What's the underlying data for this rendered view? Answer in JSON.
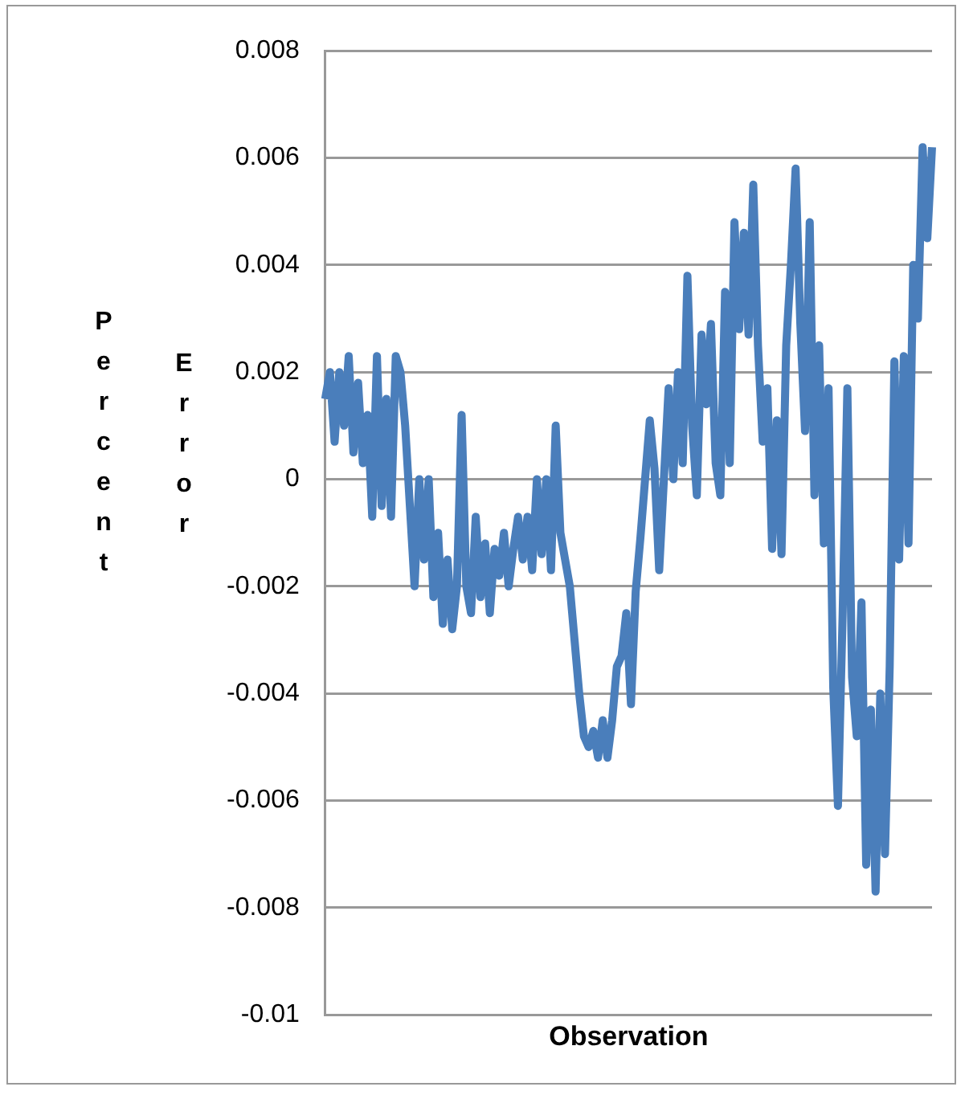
{
  "chart_data": {
    "type": "line",
    "xlabel": "Observation",
    "ylabel": "Percent Error",
    "categories": [
      null,
      null,
      null,
      null,
      null,
      null,
      null,
      null,
      null,
      null,
      null,
      null,
      null,
      null,
      null,
      null,
      null,
      null,
      null,
      null,
      null,
      null,
      null,
      null,
      null,
      null,
      null,
      null,
      null,
      null,
      null,
      null,
      null,
      null,
      null,
      null,
      null,
      null,
      null,
      null,
      null,
      null,
      null,
      null,
      null,
      null,
      null,
      null,
      null,
      null,
      null,
      null,
      null,
      null,
      null,
      null,
      null,
      null,
      null,
      null,
      null,
      null,
      null,
      null,
      null,
      null,
      null,
      null,
      null,
      null,
      null,
      null,
      null,
      null,
      null,
      null,
      null,
      null,
      null,
      null,
      null,
      null,
      null,
      null,
      null,
      null,
      null,
      null,
      null,
      null,
      null,
      null,
      null,
      null,
      null,
      null,
      null,
      null,
      null,
      null,
      null,
      null,
      null,
      null,
      null,
      null,
      null,
      null,
      null,
      null,
      null,
      null,
      null,
      null,
      null,
      null,
      null,
      null,
      null,
      null,
      null,
      null,
      null,
      null,
      null,
      null,
      null,
      null,
      null,
      null
    ],
    "series": [
      {
        "color": "#4a7ebb",
        "values": [
          0.0015,
          0.002,
          0.0007,
          0.002,
          0.001,
          0.0023,
          0.0005,
          0.0018,
          0.0003,
          0.0012,
          -0.0007,
          0.0023,
          -0.0005,
          0.0015,
          -0.0007,
          0.0023,
          0.002,
          0.001,
          -0.0005,
          -0.002,
          0,
          -0.0015,
          0,
          -0.0022,
          -0.001,
          -0.0027,
          -0.0015,
          -0.0028,
          -0.002,
          0.0012,
          -0.002,
          -0.0025,
          -0.0007,
          -0.0022,
          -0.0012,
          -0.0025,
          -0.0013,
          -0.0018,
          -0.001,
          -0.002,
          -0.0013,
          -0.0007,
          -0.0015,
          -0.0007,
          -0.0017,
          0,
          -0.0014,
          0,
          -0.0017,
          0.001,
          -0.001,
          -0.0015,
          -0.002,
          -0.003,
          -0.004,
          -0.0048,
          -0.005,
          -0.0047,
          -0.0052,
          -0.0045,
          -0.0052,
          -0.0045,
          -0.0035,
          -0.0033,
          -0.0025,
          -0.0042,
          -0.0021,
          -0.0011,
          0,
          0.0011,
          0.0002,
          -0.0017,
          0,
          0.0017,
          0,
          0.002,
          0.0003,
          0.0038,
          0.001,
          -0.0003,
          0.0027,
          0.0014,
          0.0029,
          0.0003,
          -0.0003,
          0.0035,
          0.0003,
          0.0048,
          0.0028,
          0.0046,
          0.0027,
          0.0055,
          0.0025,
          0.0007,
          0.0017,
          -0.0013,
          0.0011,
          -0.0014,
          0.0025,
          0.004,
          0.0058,
          0.0029,
          0.0009,
          0.0048,
          -0.0003,
          0.0025,
          -0.0012,
          0.0017,
          -0.0039,
          -0.0061,
          -0.0025,
          0.0017,
          -0.0037,
          -0.0048,
          -0.0023,
          -0.0072,
          -0.0043,
          -0.0077,
          -0.004,
          -0.007,
          -0.0035,
          0.0022,
          -0.0015,
          0.0023,
          -0.0012,
          0.004,
          0.003,
          0.0062,
          0.0045,
          0.0062
        ]
      }
    ],
    "ylim": [
      -0.01,
      0.008
    ],
    "yticks": [
      -0.01,
      -0.008,
      -0.006,
      -0.004,
      -0.002,
      0,
      0.002,
      0.004,
      0.006,
      0.008
    ],
    "grid": "y",
    "legend": false,
    "tick_labels": "y",
    "marker": "none",
    "line_style": "solid"
  }
}
